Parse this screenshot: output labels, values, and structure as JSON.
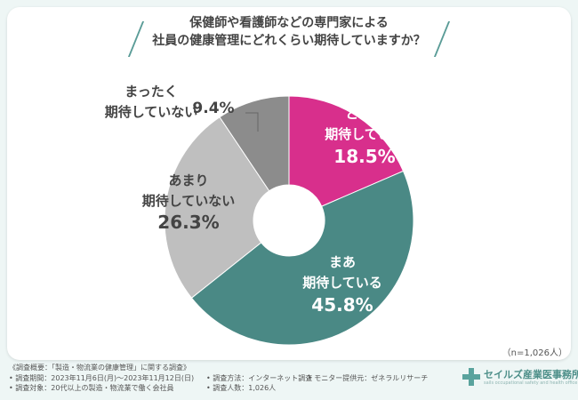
{
  "chart_data": {
    "type": "pie",
    "title": [
      "保健師や看護師などの専門家による",
      "社員の健康管理にどれくらい期待していますか？"
    ],
    "sample_note": "（n=1,026人）",
    "slices": [
      {
        "label": [
          "とても",
          "期待している"
        ],
        "value": 18.5,
        "value_text": "18.5%",
        "color": "#d82f8c"
      },
      {
        "label": [
          "まあ",
          "期待している"
        ],
        "value": 45.8,
        "value_text": "45.8%",
        "color": "#4a8985"
      },
      {
        "label": [
          "あまり",
          "期待していない"
        ],
        "value": 26.3,
        "value_text": "26.3%",
        "color": "#bfbfbf"
      },
      {
        "label": [
          "まったく",
          "期待していない"
        ],
        "value": 9.4,
        "value_text": "9.4%",
        "color": "#8c8c8c"
      }
    ]
  },
  "footer": {
    "overview": "《調査概要：「製造・物流業の健康管理」に関する調査》",
    "period": "• 調査期間：2023年11月6日(月)～2023年11月12日(日)",
    "method": "• 調査方法：インターネット調査",
    "monitor": "• モニター提供元：ゼネラルリサーチ",
    "target": "• 調査対象：20代以上の製造・物流業で働く会社員",
    "count": "• 調査人数：1,026人"
  },
  "logo": {
    "name": "セイルズ産業医事務所",
    "sub": "sails occupational safety and health office"
  }
}
